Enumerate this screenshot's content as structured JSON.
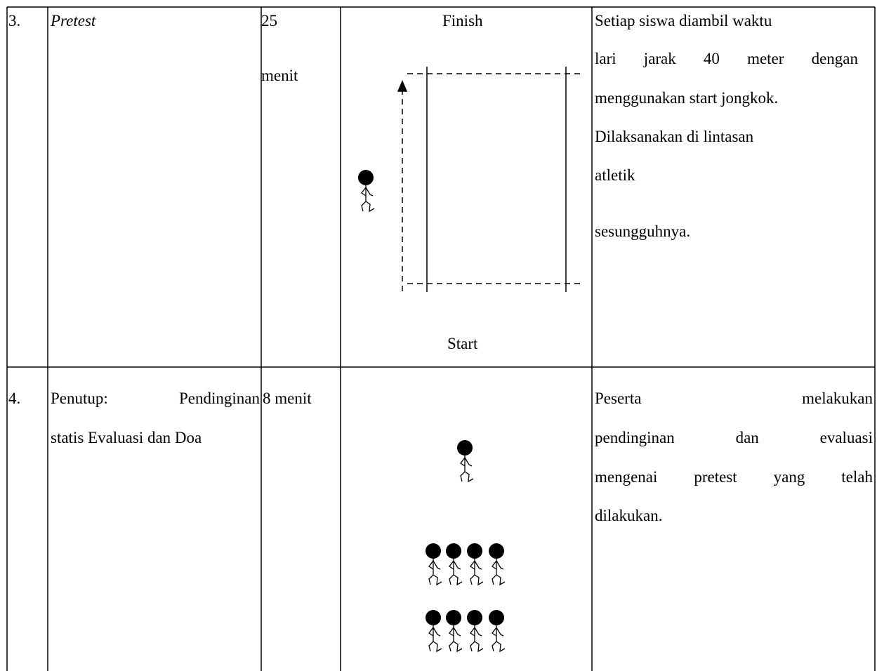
{
  "table": {
    "rows": [
      {
        "number": "3.",
        "activity": "Pretest",
        "duration": [
          "25",
          "menit"
        ],
        "diagram": {
          "top_label": "Finish",
          "bottom_label": "Start"
        },
        "description": [
          "Setiap siswa diambil waktu",
          "lari jarak 40 meter dengan",
          "menggunakan start jongkok.",
          "Dilaksanakan di lintasan",
          "atletik",
          "sesungguhnya."
        ]
      },
      {
        "number": "4.",
        "activity": [
          "Penutup: Pendinginan",
          "statis Evaluasi dan Doa"
        ],
        "duration": [
          "8 menit"
        ],
        "description": [
          "Peserta melakukan",
          "pendinginan dan evaluasi",
          "mengenai pretest yang telah",
          "dilakukan."
        ]
      }
    ]
  }
}
